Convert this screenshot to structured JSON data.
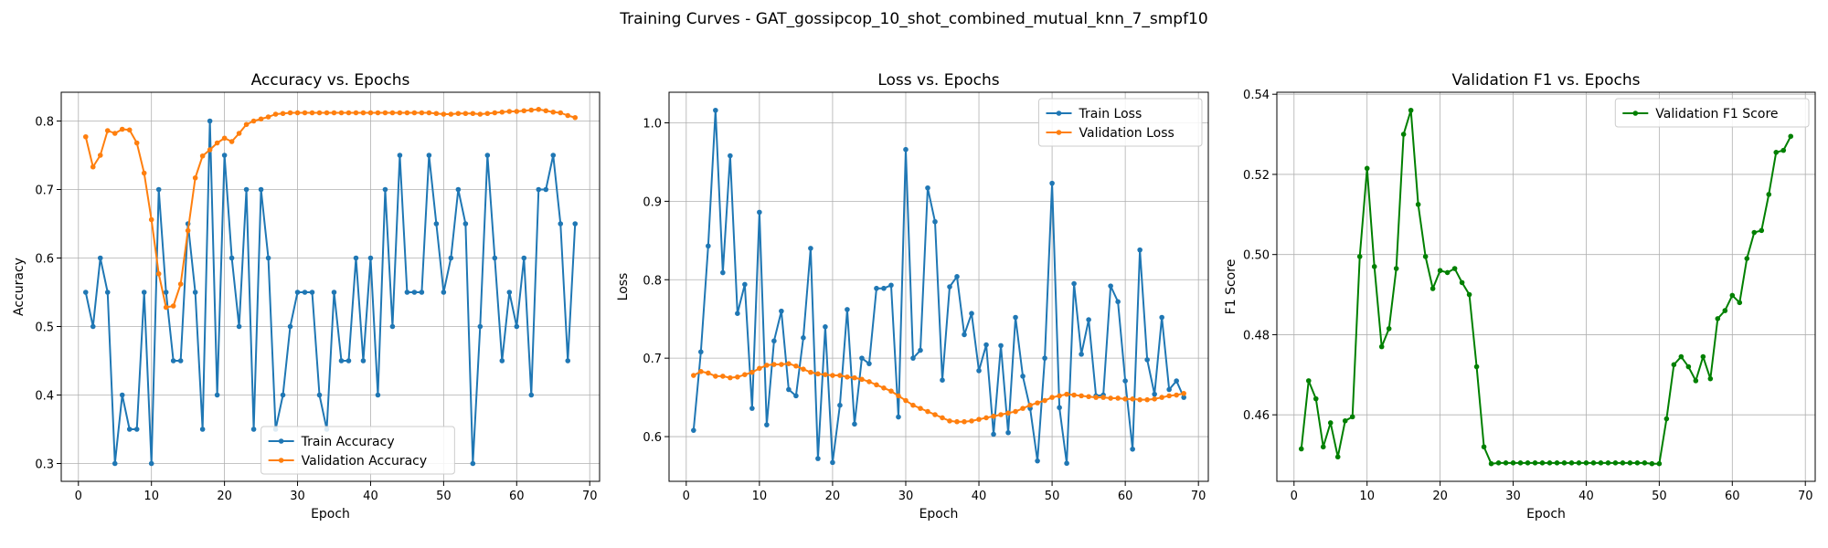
{
  "suptitle": "Training Curves - GAT_gossipcop_10_shot_combined_mutual_knn_7_smpf10",
  "chart_data": [
    {
      "type": "line",
      "title": "Accuracy vs. Epochs",
      "xlabel": "Epoch",
      "ylabel": "Accuracy",
      "xlim": [
        -2.35,
        71.35
      ],
      "ylim": [
        0.274,
        0.842
      ],
      "xticks": [
        0,
        10,
        20,
        30,
        40,
        50,
        60,
        70
      ],
      "yticks": [
        0.3,
        0.4,
        0.5,
        0.6,
        0.7,
        0.8
      ],
      "ytick_labels": [
        "0.3",
        "0.4",
        "0.5",
        "0.6",
        "0.7",
        "0.8"
      ],
      "grid": true,
      "legend_position": "lower center",
      "series": [
        {
          "name": "Train Accuracy",
          "color": "#1f77b4",
          "x": [
            1,
            2,
            3,
            4,
            5,
            6,
            7,
            8,
            9,
            10,
            11,
            12,
            13,
            14,
            15,
            16,
            17,
            18,
            19,
            20,
            21,
            22,
            23,
            24,
            25,
            26,
            27,
            28,
            29,
            30,
            31,
            32,
            33,
            34,
            35,
            36,
            37,
            38,
            39,
            40,
            41,
            42,
            43,
            44,
            45,
            46,
            47,
            48,
            49,
            50,
            51,
            52,
            53,
            54,
            55,
            56,
            57,
            58,
            59,
            60,
            61,
            62,
            63,
            64,
            65,
            66,
            67,
            68
          ],
          "values": [
            0.55,
            0.5,
            0.6,
            0.55,
            0.3,
            0.4,
            0.35,
            0.35,
            0.55,
            0.3,
            0.7,
            0.55,
            0.45,
            0.45,
            0.65,
            0.55,
            0.35,
            0.8,
            0.4,
            0.75,
            0.6,
            0.5,
            0.7,
            0.35,
            0.7,
            0.6,
            0.35,
            0.4,
            0.5,
            0.55,
            0.55,
            0.55,
            0.4,
            0.35,
            0.55,
            0.45,
            0.45,
            0.6,
            0.45,
            0.6,
            0.4,
            0.7,
            0.5,
            0.75,
            0.55,
            0.55,
            0.55,
            0.75,
            0.65,
            0.55,
            0.6,
            0.7,
            0.65,
            0.3,
            0.5,
            0.75,
            0.6,
            0.45,
            0.55,
            0.5,
            0.6,
            0.4,
            0.7,
            0.7,
            0.75,
            0.65,
            0.45,
            0.65
          ]
        },
        {
          "name": "Validation Accuracy",
          "color": "#ff7f0e",
          "x": [
            1,
            2,
            3,
            4,
            5,
            6,
            7,
            8,
            9,
            10,
            11,
            12,
            13,
            14,
            15,
            16,
            17,
            18,
            19,
            20,
            21,
            22,
            23,
            24,
            25,
            26,
            27,
            28,
            29,
            30,
            31,
            32,
            33,
            34,
            35,
            36,
            37,
            38,
            39,
            40,
            41,
            42,
            43,
            44,
            45,
            46,
            47,
            48,
            49,
            50,
            51,
            52,
            53,
            54,
            55,
            56,
            57,
            58,
            59,
            60,
            61,
            62,
            63,
            64,
            65,
            66,
            67,
            68
          ],
          "values": [
            0.777,
            0.733,
            0.75,
            0.786,
            0.782,
            0.788,
            0.787,
            0.768,
            0.724,
            0.656,
            0.577,
            0.528,
            0.53,
            0.562,
            0.64,
            0.717,
            0.749,
            0.758,
            0.768,
            0.775,
            0.77,
            0.782,
            0.795,
            0.8,
            0.803,
            0.806,
            0.81,
            0.811,
            0.812,
            0.812,
            0.812,
            0.812,
            0.812,
            0.812,
            0.812,
            0.812,
            0.812,
            0.812,
            0.812,
            0.812,
            0.812,
            0.812,
            0.812,
            0.812,
            0.812,
            0.812,
            0.812,
            0.812,
            0.811,
            0.81,
            0.81,
            0.811,
            0.811,
            0.811,
            0.81,
            0.811,
            0.812,
            0.813,
            0.814,
            0.814,
            0.815,
            0.816,
            0.817,
            0.815,
            0.813,
            0.812,
            0.808,
            0.805
          ]
        }
      ]
    },
    {
      "type": "line",
      "title": "Loss vs. Epochs",
      "xlabel": "Epoch",
      "ylabel": "Loss",
      "xlim": [
        -2.35,
        71.35
      ],
      "ylim": [
        0.543,
        1.039
      ],
      "xticks": [
        0,
        10,
        20,
        30,
        40,
        50,
        60,
        70
      ],
      "yticks": [
        0.6,
        0.7,
        0.8,
        0.9,
        1.0
      ],
      "ytick_labels": [
        "0.6",
        "0.7",
        "0.8",
        "0.9",
        "1.0"
      ],
      "grid": true,
      "legend_position": "upper right",
      "series": [
        {
          "name": "Train Loss",
          "color": "#1f77b4",
          "x": [
            1,
            2,
            3,
            4,
            5,
            6,
            7,
            8,
            9,
            10,
            11,
            12,
            13,
            14,
            15,
            16,
            17,
            18,
            19,
            20,
            21,
            22,
            23,
            24,
            25,
            26,
            27,
            28,
            29,
            30,
            31,
            32,
            33,
            34,
            35,
            36,
            37,
            38,
            39,
            40,
            41,
            42,
            43,
            44,
            45,
            46,
            47,
            48,
            49,
            50,
            51,
            52,
            53,
            54,
            55,
            56,
            57,
            58,
            59,
            60,
            61,
            62,
            63,
            64,
            65,
            66,
            67,
            68
          ],
          "values": [
            0.608,
            0.708,
            0.843,
            1.016,
            0.809,
            0.958,
            0.757,
            0.794,
            0.636,
            0.886,
            0.615,
            0.722,
            0.76,
            0.66,
            0.652,
            0.726,
            0.84,
            0.572,
            0.74,
            0.567,
            0.64,
            0.762,
            0.616,
            0.7,
            0.693,
            0.789,
            0.789,
            0.793,
            0.625,
            0.966,
            0.7,
            0.71,
            0.917,
            0.874,
            0.672,
            0.791,
            0.804,
            0.73,
            0.757,
            0.684,
            0.717,
            0.603,
            0.716,
            0.605,
            0.752,
            0.677,
            0.636,
            0.569,
            0.7,
            0.923,
            0.637,
            0.566,
            0.795,
            0.705,
            0.749,
            0.652,
            0.653,
            0.792,
            0.772,
            0.671,
            0.584,
            0.838,
            0.698,
            0.654,
            0.752,
            0.66,
            0.671,
            0.65
          ]
        },
        {
          "name": "Validation Loss",
          "color": "#ff7f0e",
          "x": [
            1,
            2,
            3,
            4,
            5,
            6,
            7,
            8,
            9,
            10,
            11,
            12,
            13,
            14,
            15,
            16,
            17,
            18,
            19,
            20,
            21,
            22,
            23,
            24,
            25,
            26,
            27,
            28,
            29,
            30,
            31,
            32,
            33,
            34,
            35,
            36,
            37,
            38,
            39,
            40,
            41,
            42,
            43,
            44,
            45,
            46,
            47,
            48,
            49,
            50,
            51,
            52,
            53,
            54,
            55,
            56,
            57,
            58,
            59,
            60,
            61,
            62,
            63,
            64,
            65,
            66,
            67,
            68
          ],
          "values": [
            0.678,
            0.683,
            0.681,
            0.677,
            0.677,
            0.675,
            0.676,
            0.679,
            0.682,
            0.687,
            0.691,
            0.692,
            0.692,
            0.693,
            0.69,
            0.686,
            0.682,
            0.68,
            0.679,
            0.678,
            0.678,
            0.676,
            0.675,
            0.673,
            0.67,
            0.666,
            0.662,
            0.658,
            0.652,
            0.646,
            0.64,
            0.636,
            0.632,
            0.628,
            0.624,
            0.62,
            0.619,
            0.619,
            0.62,
            0.622,
            0.624,
            0.626,
            0.628,
            0.63,
            0.632,
            0.636,
            0.64,
            0.643,
            0.646,
            0.65,
            0.652,
            0.654,
            0.653,
            0.652,
            0.651,
            0.65,
            0.65,
            0.649,
            0.649,
            0.648,
            0.648,
            0.647,
            0.647,
            0.648,
            0.65,
            0.652,
            0.653,
            0.655
          ]
        }
      ]
    },
    {
      "type": "line",
      "title": "Validation F1 vs. Epochs",
      "xlabel": "Epoch",
      "ylabel": "F1 Score",
      "xlim": [
        -2.35,
        71.35
      ],
      "ylim": [
        0.4434,
        0.5405
      ],
      "xticks": [
        0,
        10,
        20,
        30,
        40,
        50,
        60,
        70
      ],
      "yticks": [
        0.46,
        0.48,
        0.5,
        0.52,
        0.54
      ],
      "ytick_labels": [
        "0.46",
        "0.48",
        "0.50",
        "0.52",
        "0.54"
      ],
      "grid": true,
      "legend_position": "upper right",
      "series": [
        {
          "name": "Validation F1 Score",
          "color": "#008000",
          "x": [
            1,
            2,
            3,
            4,
            5,
            6,
            7,
            8,
            9,
            10,
            11,
            12,
            13,
            14,
            15,
            16,
            17,
            18,
            19,
            20,
            21,
            22,
            23,
            24,
            25,
            26,
            27,
            28,
            29,
            30,
            31,
            32,
            33,
            34,
            35,
            36,
            37,
            38,
            39,
            40,
            41,
            42,
            43,
            44,
            45,
            46,
            47,
            48,
            49,
            50,
            51,
            52,
            53,
            54,
            55,
            56,
            57,
            58,
            59,
            60,
            61,
            62,
            63,
            64,
            65,
            66,
            67,
            68
          ],
          "values": [
            0.4515,
            0.4685,
            0.464,
            0.452,
            0.458,
            0.4495,
            0.4585,
            0.4595,
            0.4995,
            0.5215,
            0.497,
            0.477,
            0.4815,
            0.4965,
            0.53,
            0.536,
            0.5125,
            0.4995,
            0.4915,
            0.496,
            0.4955,
            0.4965,
            0.493,
            0.49,
            0.472,
            0.452,
            0.4478,
            0.448,
            0.448,
            0.448,
            0.448,
            0.448,
            0.448,
            0.448,
            0.448,
            0.448,
            0.448,
            0.448,
            0.448,
            0.448,
            0.448,
            0.448,
            0.448,
            0.448,
            0.448,
            0.448,
            0.448,
            0.448,
            0.4478,
            0.4478,
            0.459,
            0.4725,
            0.4745,
            0.472,
            0.4685,
            0.4745,
            0.469,
            0.484,
            0.486,
            0.4898,
            0.488,
            0.499,
            0.5055,
            0.506,
            0.515,
            0.5255,
            0.526,
            0.5295
          ]
        }
      ]
    }
  ]
}
